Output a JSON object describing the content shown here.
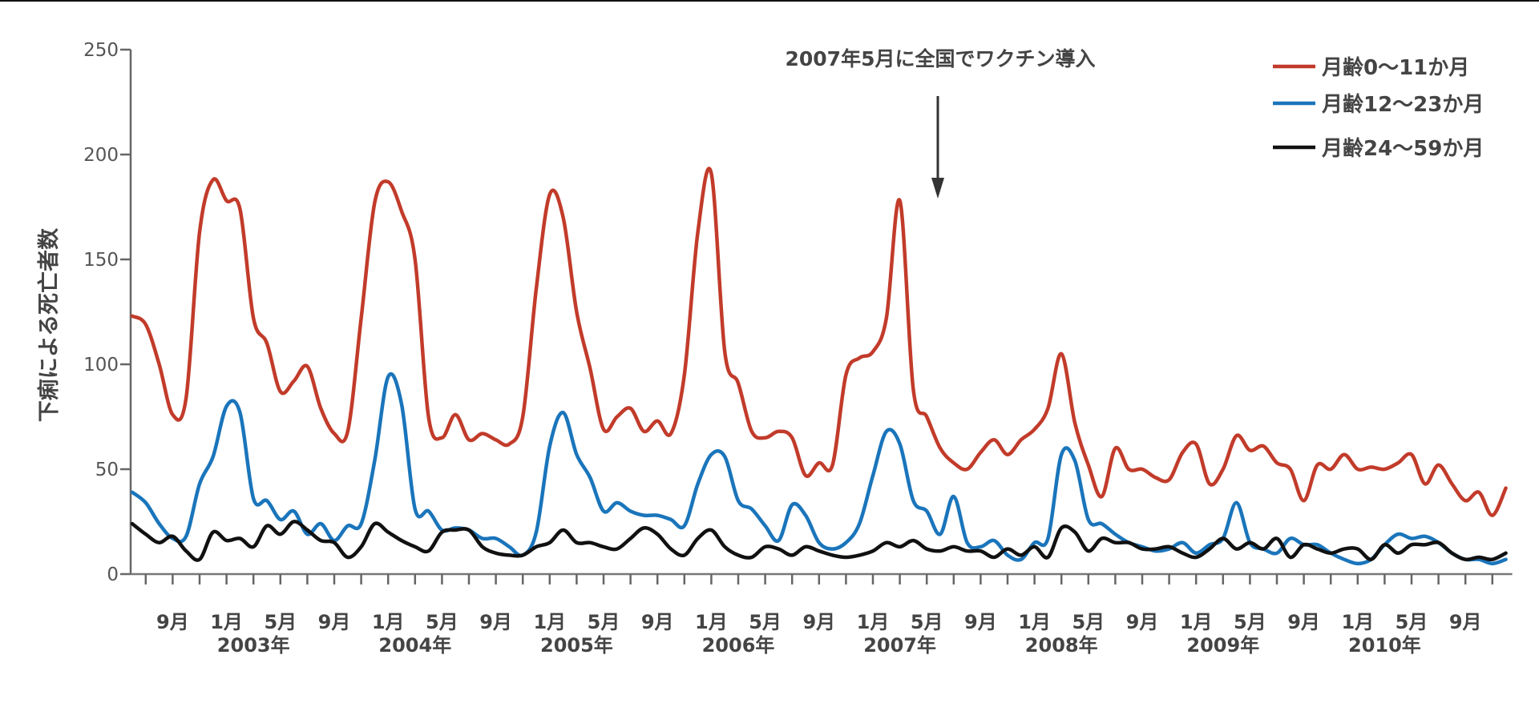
{
  "chart_data": {
    "type": "line",
    "title": "",
    "xlabel": "",
    "ylabel": "下痢による死亡者数",
    "ylim": [
      0,
      250
    ],
    "yticks": [
      0,
      50,
      100,
      150,
      200,
      250
    ],
    "grid": false,
    "legend_position": "top-right",
    "x_start": "2002-06",
    "x_end": "2010-12",
    "x_unit": "month",
    "x_month_labels": [
      {
        "date": "2002-09",
        "label": "9月"
      },
      {
        "date": "2003-01",
        "label": "1月"
      },
      {
        "date": "2003-05",
        "label": "5月"
      },
      {
        "date": "2003-09",
        "label": "9月"
      },
      {
        "date": "2004-01",
        "label": "1月"
      },
      {
        "date": "2004-05",
        "label": "5月"
      },
      {
        "date": "2004-09",
        "label": "9月"
      },
      {
        "date": "2005-01",
        "label": "1月"
      },
      {
        "date": "2005-05",
        "label": "5月"
      },
      {
        "date": "2005-09",
        "label": "9月"
      },
      {
        "date": "2006-01",
        "label": "1月"
      },
      {
        "date": "2006-05",
        "label": "5月"
      },
      {
        "date": "2006-09",
        "label": "9月"
      },
      {
        "date": "2007-01",
        "label": "1月"
      },
      {
        "date": "2007-05",
        "label": "5月"
      },
      {
        "date": "2007-09",
        "label": "9月"
      },
      {
        "date": "2008-01",
        "label": "1月"
      },
      {
        "date": "2008-05",
        "label": "5月"
      },
      {
        "date": "2008-09",
        "label": "9月"
      },
      {
        "date": "2009-01",
        "label": "1月"
      },
      {
        "date": "2009-05",
        "label": "5月"
      },
      {
        "date": "2009-09",
        "label": "9月"
      },
      {
        "date": "2010-01",
        "label": "1月"
      },
      {
        "date": "2010-05",
        "label": "5月"
      },
      {
        "date": "2010-09",
        "label": "9月"
      }
    ],
    "x_year_labels": [
      {
        "date": "2003-03",
        "label": "2003年"
      },
      {
        "date": "2004-03",
        "label": "2004年"
      },
      {
        "date": "2005-03",
        "label": "2005年"
      },
      {
        "date": "2006-03",
        "label": "2006年"
      },
      {
        "date": "2007-03",
        "label": "2007年"
      },
      {
        "date": "2008-03",
        "label": "2008年"
      },
      {
        "date": "2009-03",
        "label": "2009年"
      },
      {
        "date": "2010-03",
        "label": "2010年"
      }
    ],
    "annotation": {
      "text": "2007年5月に全国でワクチン導入",
      "date": "2007-05"
    },
    "series": [
      {
        "name": "月齢0〜11か月",
        "color": "#c23b2a",
        "values": [
          123,
          119,
          100,
          76,
          84,
          163,
          188,
          178,
          174,
          122,
          110,
          87,
          92,
          99,
          79,
          67,
          68,
          122,
          177,
          187,
          173,
          150,
          75,
          65,
          76,
          64,
          67,
          64,
          62,
          75,
          136,
          181,
          170,
          125,
          98,
          69,
          75,
          79,
          68,
          73,
          67,
          95,
          163,
          191,
          106,
          91,
          68,
          65,
          68,
          65,
          47,
          53,
          52,
          95,
          103,
          106,
          122,
          178,
          88,
          75,
          60,
          53,
          50,
          58,
          64,
          57,
          64,
          69,
          79,
          105,
          72,
          52,
          37,
          60,
          50,
          50,
          46,
          45,
          58,
          62,
          43,
          50,
          66,
          59,
          61,
          53,
          50,
          35,
          52,
          50,
          57,
          50,
          51,
          50,
          53,
          57,
          43,
          52,
          43,
          35,
          39,
          28,
          41
        ]
      },
      {
        "name": "月齢12〜23か月",
        "color": "#1a75bb",
        "values": [
          39,
          34,
          24,
          17,
          18,
          43,
          56,
          80,
          77,
          36,
          35,
          26,
          30,
          19,
          24,
          16,
          23,
          24,
          54,
          94,
          81,
          31,
          30,
          21,
          22,
          21,
          17,
          17,
          13,
          9,
          20,
          61,
          77,
          57,
          46,
          30,
          34,
          30,
          28,
          28,
          26,
          23,
          43,
          57,
          56,
          35,
          31,
          23,
          16,
          33,
          28,
          15,
          12,
          15,
          24,
          47,
          68,
          62,
          35,
          30,
          19,
          37,
          15,
          13,
          16,
          9,
          7,
          15,
          17,
          57,
          54,
          26,
          24,
          19,
          15,
          13,
          11,
          12,
          15,
          10,
          14,
          17,
          34,
          15,
          12,
          10,
          17,
          14,
          14,
          10,
          7,
          5,
          7,
          14,
          19,
          17,
          18,
          15,
          10,
          7,
          7,
          5,
          7
        ]
      },
      {
        "name": "月齢24〜59か月",
        "color": "#111111",
        "values": [
          24,
          19,
          15,
          18,
          11,
          7,
          20,
          16,
          17,
          13,
          23,
          19,
          25,
          21,
          16,
          15,
          8,
          13,
          24,
          20,
          16,
          13,
          11,
          20,
          21,
          21,
          13,
          10,
          9,
          9,
          13,
          15,
          21,
          15,
          15,
          13,
          12,
          17,
          22,
          19,
          12,
          9,
          17,
          21,
          13,
          9,
          8,
          13,
          12,
          9,
          13,
          11,
          9,
          8,
          9,
          11,
          15,
          13,
          16,
          12,
          11,
          13,
          11,
          11,
          8,
          12,
          9,
          13,
          8,
          22,
          20,
          11,
          17,
          15,
          15,
          12,
          12,
          13,
          10,
          8,
          12,
          17,
          12,
          15,
          12,
          17,
          8,
          14,
          12,
          10,
          12,
          12,
          7,
          14,
          10,
          14,
          14,
          15,
          10,
          7,
          8,
          7,
          10
        ]
      }
    ]
  }
}
